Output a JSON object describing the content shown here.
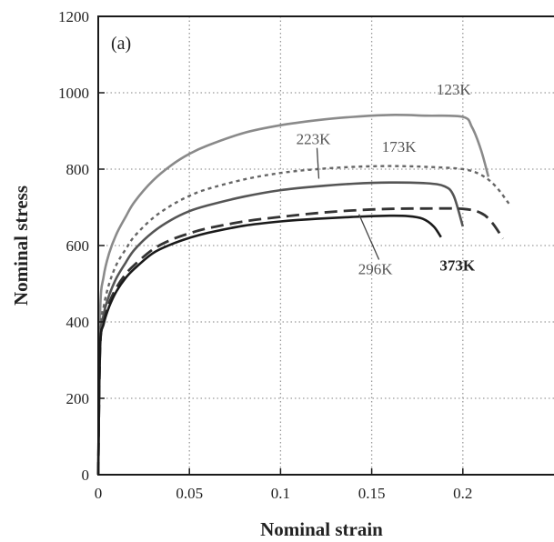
{
  "chart_data": {
    "type": "line",
    "title": "",
    "panel_label": "(a)",
    "xlabel": "Nominal strain",
    "ylabel": "Nominal stress",
    "xlim": [
      0,
      0.25
    ],
    "ylim": [
      0,
      1200
    ],
    "xticks": [
      0,
      0.05,
      0.1,
      0.15,
      0.2
    ],
    "xtick_labels": [
      "0",
      "0.05",
      "0.1",
      "0.15",
      "0.2"
    ],
    "yticks": [
      0,
      200,
      400,
      600,
      800,
      1000,
      1200
    ],
    "ytick_labels": [
      "0",
      "200",
      "400",
      "600",
      "800",
      "1000",
      "1200"
    ],
    "grid": true,
    "series": [
      {
        "name": "123K",
        "style": "solid",
        "color": "#8a8a8a",
        "x": [
          0,
          0.001,
          0.003,
          0.006,
          0.01,
          0.015,
          0.02,
          0.03,
          0.04,
          0.05,
          0.06,
          0.08,
          0.1,
          0.12,
          0.14,
          0.16,
          0.18,
          0.2,
          0.205,
          0.21,
          0.214
        ],
        "y": [
          0,
          420,
          520,
          580,
          630,
          675,
          715,
          770,
          810,
          840,
          862,
          895,
          915,
          928,
          937,
          942,
          940,
          937,
          910,
          850,
          780
        ]
      },
      {
        "name": "173K",
        "style": "dotted",
        "color": "#666666",
        "x": [
          0,
          0.001,
          0.003,
          0.006,
          0.01,
          0.015,
          0.02,
          0.03,
          0.04,
          0.05,
          0.06,
          0.08,
          0.1,
          0.12,
          0.14,
          0.16,
          0.18,
          0.2,
          0.21,
          0.218,
          0.226
        ],
        "y": [
          0,
          360,
          440,
          500,
          550,
          590,
          625,
          672,
          705,
          730,
          748,
          773,
          790,
          800,
          806,
          808,
          806,
          800,
          785,
          755,
          705
        ]
      },
      {
        "name": "223K",
        "style": "solid",
        "color": "#555555",
        "x": [
          0,
          0.001,
          0.003,
          0.006,
          0.01,
          0.015,
          0.02,
          0.03,
          0.04,
          0.05,
          0.06,
          0.08,
          0.1,
          0.12,
          0.14,
          0.16,
          0.18,
          0.19,
          0.195,
          0.2
        ],
        "y": [
          0,
          340,
          420,
          470,
          515,
          555,
          590,
          635,
          667,
          690,
          705,
          728,
          745,
          755,
          762,
          765,
          763,
          755,
          730,
          650
        ]
      },
      {
        "name": "296K",
        "style": "dashed",
        "color": "#333333",
        "x": [
          0,
          0.001,
          0.003,
          0.006,
          0.01,
          0.015,
          0.02,
          0.03,
          0.04,
          0.05,
          0.06,
          0.08,
          0.1,
          0.12,
          0.14,
          0.16,
          0.18,
          0.2,
          0.21,
          0.216,
          0.222
        ],
        "y": [
          0,
          330,
          400,
          450,
          490,
          525,
          550,
          590,
          615,
          632,
          645,
          663,
          675,
          685,
          692,
          696,
          697,
          696,
          685,
          660,
          618
        ]
      },
      {
        "name": "373K",
        "style": "solid",
        "color": "#1a1a1a",
        "x": [
          0,
          0.001,
          0.003,
          0.006,
          0.01,
          0.015,
          0.02,
          0.03,
          0.04,
          0.05,
          0.06,
          0.08,
          0.1,
          0.12,
          0.14,
          0.16,
          0.17,
          0.178,
          0.184,
          0.188
        ],
        "y": [
          0,
          330,
          395,
          440,
          480,
          515,
          540,
          580,
          603,
          620,
          633,
          652,
          663,
          670,
          675,
          678,
          677,
          670,
          650,
          622
        ]
      }
    ],
    "annotations": [
      {
        "text": "123K",
        "x": 0.195,
        "y": 995,
        "bold": false
      },
      {
        "text": "173K",
        "x": 0.165,
        "y": 845,
        "bold": false
      },
      {
        "text": "223K",
        "x": 0.118,
        "y": 865,
        "bold": false,
        "arrow_to": [
          0.121,
          775
        ]
      },
      {
        "text": "296K",
        "x": 0.152,
        "y": 525,
        "bold": false,
        "arrow_to": [
          0.143,
          682
        ]
      },
      {
        "text": "373K",
        "x": 0.197,
        "y": 535,
        "bold": true
      }
    ]
  }
}
